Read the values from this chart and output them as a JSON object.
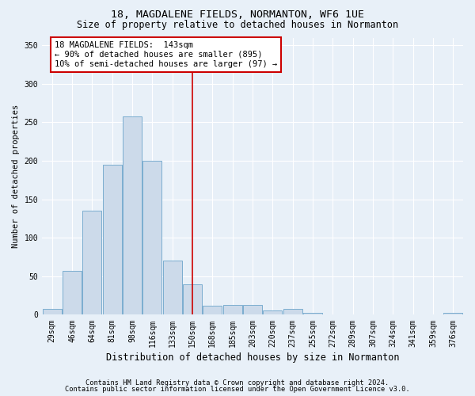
{
  "title": "18, MAGDALENE FIELDS, NORMANTON, WF6 1UE",
  "subtitle": "Size of property relative to detached houses in Normanton",
  "xlabel": "Distribution of detached houses by size in Normanton",
  "ylabel": "Number of detached properties",
  "categories": [
    "29sqm",
    "46sqm",
    "64sqm",
    "81sqm",
    "98sqm",
    "116sqm",
    "133sqm",
    "150sqm",
    "168sqm",
    "185sqm",
    "203sqm",
    "220sqm",
    "237sqm",
    "255sqm",
    "272sqm",
    "289sqm",
    "307sqm",
    "324sqm",
    "341sqm",
    "359sqm",
    "376sqm"
  ],
  "values": [
    8,
    57,
    135,
    195,
    258,
    200,
    70,
    40,
    12,
    13,
    13,
    6,
    8,
    3,
    0,
    0,
    0,
    0,
    0,
    0,
    3
  ],
  "bar_color": "#ccdaea",
  "bar_edge_color": "#7badd0",
  "bar_edge_width": 0.7,
  "vline_x": 7.0,
  "vline_color": "#cc0000",
  "annotation_title": "18 MAGDALENE FIELDS:  143sqm",
  "annotation_line1": "← 90% of detached houses are smaller (895)",
  "annotation_line2": "10% of semi-detached houses are larger (97) →",
  "annotation_box_color": "#ffffff",
  "annotation_box_edge": "#cc0000",
  "ylim": [
    0,
    360
  ],
  "yticks": [
    0,
    50,
    100,
    150,
    200,
    250,
    300,
    350
  ],
  "background_color": "#e8f0f8",
  "plot_bg_color": "#e8f0f8",
  "grid_color": "#ffffff",
  "footer1": "Contains HM Land Registry data © Crown copyright and database right 2024.",
  "footer2": "Contains public sector information licensed under the Open Government Licence v3.0.",
  "title_fontsize": 9.5,
  "subtitle_fontsize": 8.5,
  "xlabel_fontsize": 8.5,
  "ylabel_fontsize": 7.5,
  "tick_fontsize": 7,
  "annotation_fontsize": 7.5,
  "footer_fontsize": 6.2
}
